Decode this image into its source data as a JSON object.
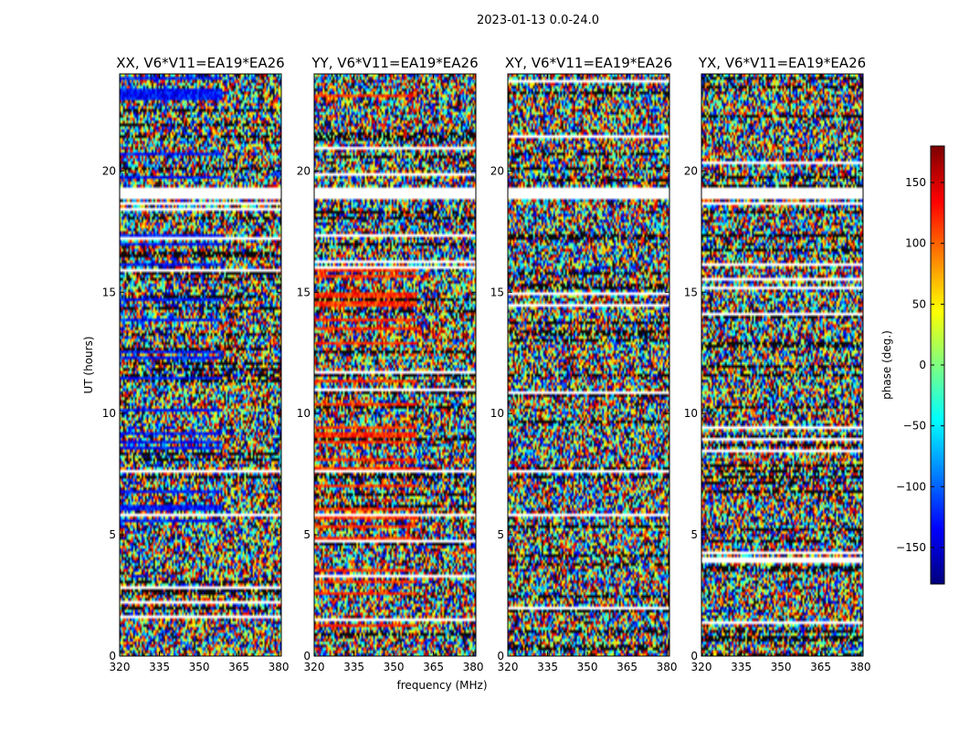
{
  "figure": {
    "suptitle": "2023-01-13 0.0-24.0",
    "xlabel": "frequency (MHz)",
    "ylabel": "UT (hours)"
  },
  "chart_data": {
    "type": "heatmap",
    "title": "2023-01-13 0.0-24.0",
    "xlabel": "frequency (MHz)",
    "ylabel": "UT (hours)",
    "xlim": [
      320,
      381
    ],
    "ylim": [
      0,
      24
    ],
    "x_ticks": [
      320,
      335,
      350,
      365,
      380
    ],
    "y_ticks": [
      0,
      5,
      10,
      15,
      20
    ],
    "colormap": "jet",
    "panels": [
      {
        "name": "XX, V6*V11=EA19*EA26",
        "correlation": "XX",
        "flagged_ut_ranges": [
          [
            18.85,
            19.35
          ],
          [
            12.6,
            12.65
          ]
        ],
        "coherent_phase_deg": -130
      },
      {
        "name": "YY, V6*V11=EA19*EA26",
        "correlation": "YY",
        "flagged_ut_ranges": [
          [
            18.85,
            19.35
          ],
          [
            12.6,
            12.65
          ]
        ],
        "coherent_phase_deg": 120
      },
      {
        "name": "XY, V6*V11=EA19*EA26",
        "correlation": "XY",
        "flagged_ut_ranges": [
          [
            18.85,
            19.35
          ],
          [
            18.2,
            18.25
          ],
          [
            12.6,
            12.65
          ]
        ],
        "coherent_phase_deg": null
      },
      {
        "name": "YX, V6*V11=EA19*EA26",
        "correlation": "YX",
        "flagged_ut_ranges": [
          [
            18.85,
            19.35
          ],
          [
            18.2,
            18.25
          ],
          [
            12.6,
            12.65
          ]
        ],
        "coherent_phase_deg": null
      }
    ],
    "colorbar": {
      "label": "phase (deg.)",
      "range": [
        -180,
        180
      ],
      "ticks": [
        150,
        100,
        50,
        0,
        -50,
        -100,
        -150
      ],
      "tick_labels": [
        "150",
        "100",
        "50",
        "0",
        "−50",
        "−100",
        "−150"
      ]
    }
  }
}
